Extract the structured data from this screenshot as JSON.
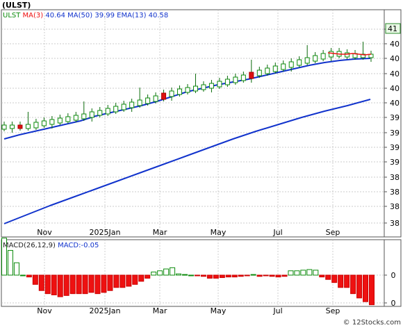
{
  "ticker_label": "(ULST)",
  "watermark": "© 12Stocks.com",
  "price_panel": {
    "legend": [
      {
        "label": "ULST",
        "value": "",
        "color": "#0a8a0a"
      },
      {
        "label": "MA(3)",
        "value": "40.64",
        "color": "#ee1111"
      },
      {
        "label": "MA(50)",
        "value": "39.99",
        "color": "#1133cc"
      },
      {
        "label": "EMA(13)",
        "value": "40.58",
        "color": "#1133cc"
      }
    ],
    "last_price_tag": "41"
  },
  "macd_panel": {
    "legend": [
      {
        "label": "MACD(26,12,9)",
        "value": "",
        "color": "#222222"
      },
      {
        "label": "MACD:",
        "value": "-0.05",
        "color": "#1133cc"
      }
    ]
  },
  "chart_data": [
    {
      "type": "candlestick",
      "title": "(ULST)",
      "y_tick_labels": [
        "41",
        "40",
        "40",
        "40",
        "40",
        "40",
        "39",
        "39",
        "39",
        "39",
        "38",
        "38",
        "38",
        "38"
      ],
      "x_tick_labels": [
        "Nov",
        "2025Jan",
        "Mar",
        "May",
        "Jul",
        "Sep"
      ],
      "grid": true,
      "legend_placement": "top-left",
      "approx_range": [
        38.0,
        41.0
      ],
      "series": [
        {
          "name": "ULST",
          "kind": "candles",
          "values": [
            39.6,
            39.6,
            39.6,
            39.61,
            39.64,
            39.66,
            39.68,
            39.7,
            39.72,
            39.74,
            39.76,
            39.79,
            39.81,
            39.84,
            39.87,
            39.9,
            39.93,
            39.96,
            39.99,
            40.02,
            40.06,
            40.09,
            40.12,
            40.14,
            40.16,
            40.18,
            40.2,
            40.23,
            40.26,
            40.29,
            40.32,
            40.36,
            40.39,
            40.42,
            40.45,
            40.48,
            40.51,
            40.54,
            40.57,
            40.6,
            40.63,
            40.66,
            40.64,
            40.63,
            40.62,
            40.62,
            40.62
          ]
        },
        {
          "name": "MA(3)",
          "kind": "line",
          "values": [
            40.66,
            40.65,
            40.64,
            40.64,
            40.65,
            40.64,
            40.63,
            40.64
          ]
        },
        {
          "name": "EMA(13)",
          "kind": "line",
          "values": [
            39.42,
            39.48,
            39.53,
            39.58,
            39.63,
            39.68,
            39.75,
            39.8,
            39.85,
            39.9,
            39.96,
            40.03,
            40.1,
            40.15,
            40.2,
            40.24,
            40.28,
            40.33,
            40.38,
            40.43,
            40.48,
            40.52,
            40.55,
            40.57,
            40.58
          ]
        },
        {
          "name": "MA(50)",
          "kind": "line",
          "values": [
            38.2,
            38.33,
            38.46,
            38.58,
            38.7,
            38.82,
            38.94,
            39.06,
            39.18,
            39.3,
            39.42,
            39.53,
            39.63,
            39.73,
            39.82,
            39.9,
            39.99
          ]
        }
      ]
    },
    {
      "type": "bar",
      "title": "MACD(26,12,9)",
      "y_tick_labels": [
        "0",
        "0"
      ],
      "x_tick_labels": [
        "Nov",
        "2025Jan",
        "Mar",
        "May",
        "Jul",
        "Sep"
      ],
      "series": [
        {
          "name": "MACD",
          "values": [
            0.06,
            0.04,
            0.02,
            0.0,
            -0.003,
            -0.015,
            -0.025,
            -0.03,
            -0.032,
            -0.035,
            -0.033,
            -0.03,
            -0.03,
            -0.03,
            -0.028,
            -0.03,
            -0.028,
            -0.025,
            -0.02,
            -0.02,
            -0.018,
            -0.015,
            -0.01,
            -0.005,
            0.005,
            0.007,
            0.01,
            0.012,
            0.002,
            0.001,
            0.0,
            -0.001,
            -0.002,
            -0.005,
            -0.005,
            -0.004,
            -0.003,
            -0.003,
            -0.002,
            -0.001,
            0.001,
            -0.002,
            -0.001,
            -0.002,
            -0.003,
            -0.002,
            0.007,
            0.007,
            0.008,
            0.009,
            0.008,
            -0.003,
            -0.007,
            -0.012,
            -0.02,
            -0.02,
            -0.03,
            -0.037,
            -0.043,
            -0.048
          ]
        }
      ]
    }
  ]
}
